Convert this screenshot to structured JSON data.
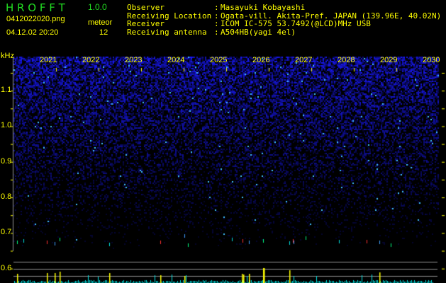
{
  "app": {
    "name": "H R O F F T",
    "version": "1.0.0"
  },
  "file": {
    "name": "0412022020.png",
    "datetime": "04.12.02 20:20"
  },
  "meteor": {
    "label": "meteor",
    "count": "12"
  },
  "info": [
    {
      "label": "Observer",
      "value": "Masayuki Kobayashi"
    },
    {
      "label": "Receiving Location",
      "value": "Ogata-vill. Akita-Pref. JAPAN (139.96E, 40.02N)"
    },
    {
      "label": "Receiver",
      "value": "ICOM IC-575 53.7492(@LCD)MHz USB"
    },
    {
      "label": "Receiving antenna",
      "value": "A504HB(yagi 4el)"
    }
  ],
  "spectrogram": {
    "unit": "kHz",
    "time_labels": [
      "2021",
      "2022",
      "2023",
      "2024",
      "2025",
      "2026",
      "2027",
      "2028",
      "2029",
      "2030"
    ],
    "freq_labels": [
      "1.1",
      "1.0",
      "0.9",
      "0.8",
      "0.7",
      "0.6"
    ],
    "colors": {
      "background": "#000000",
      "noise": "#1010ff",
      "axis": "#ffff00",
      "count_bars": "#00e5e5",
      "meteor_bars": "#ffff00",
      "grid": "#909090"
    }
  }
}
